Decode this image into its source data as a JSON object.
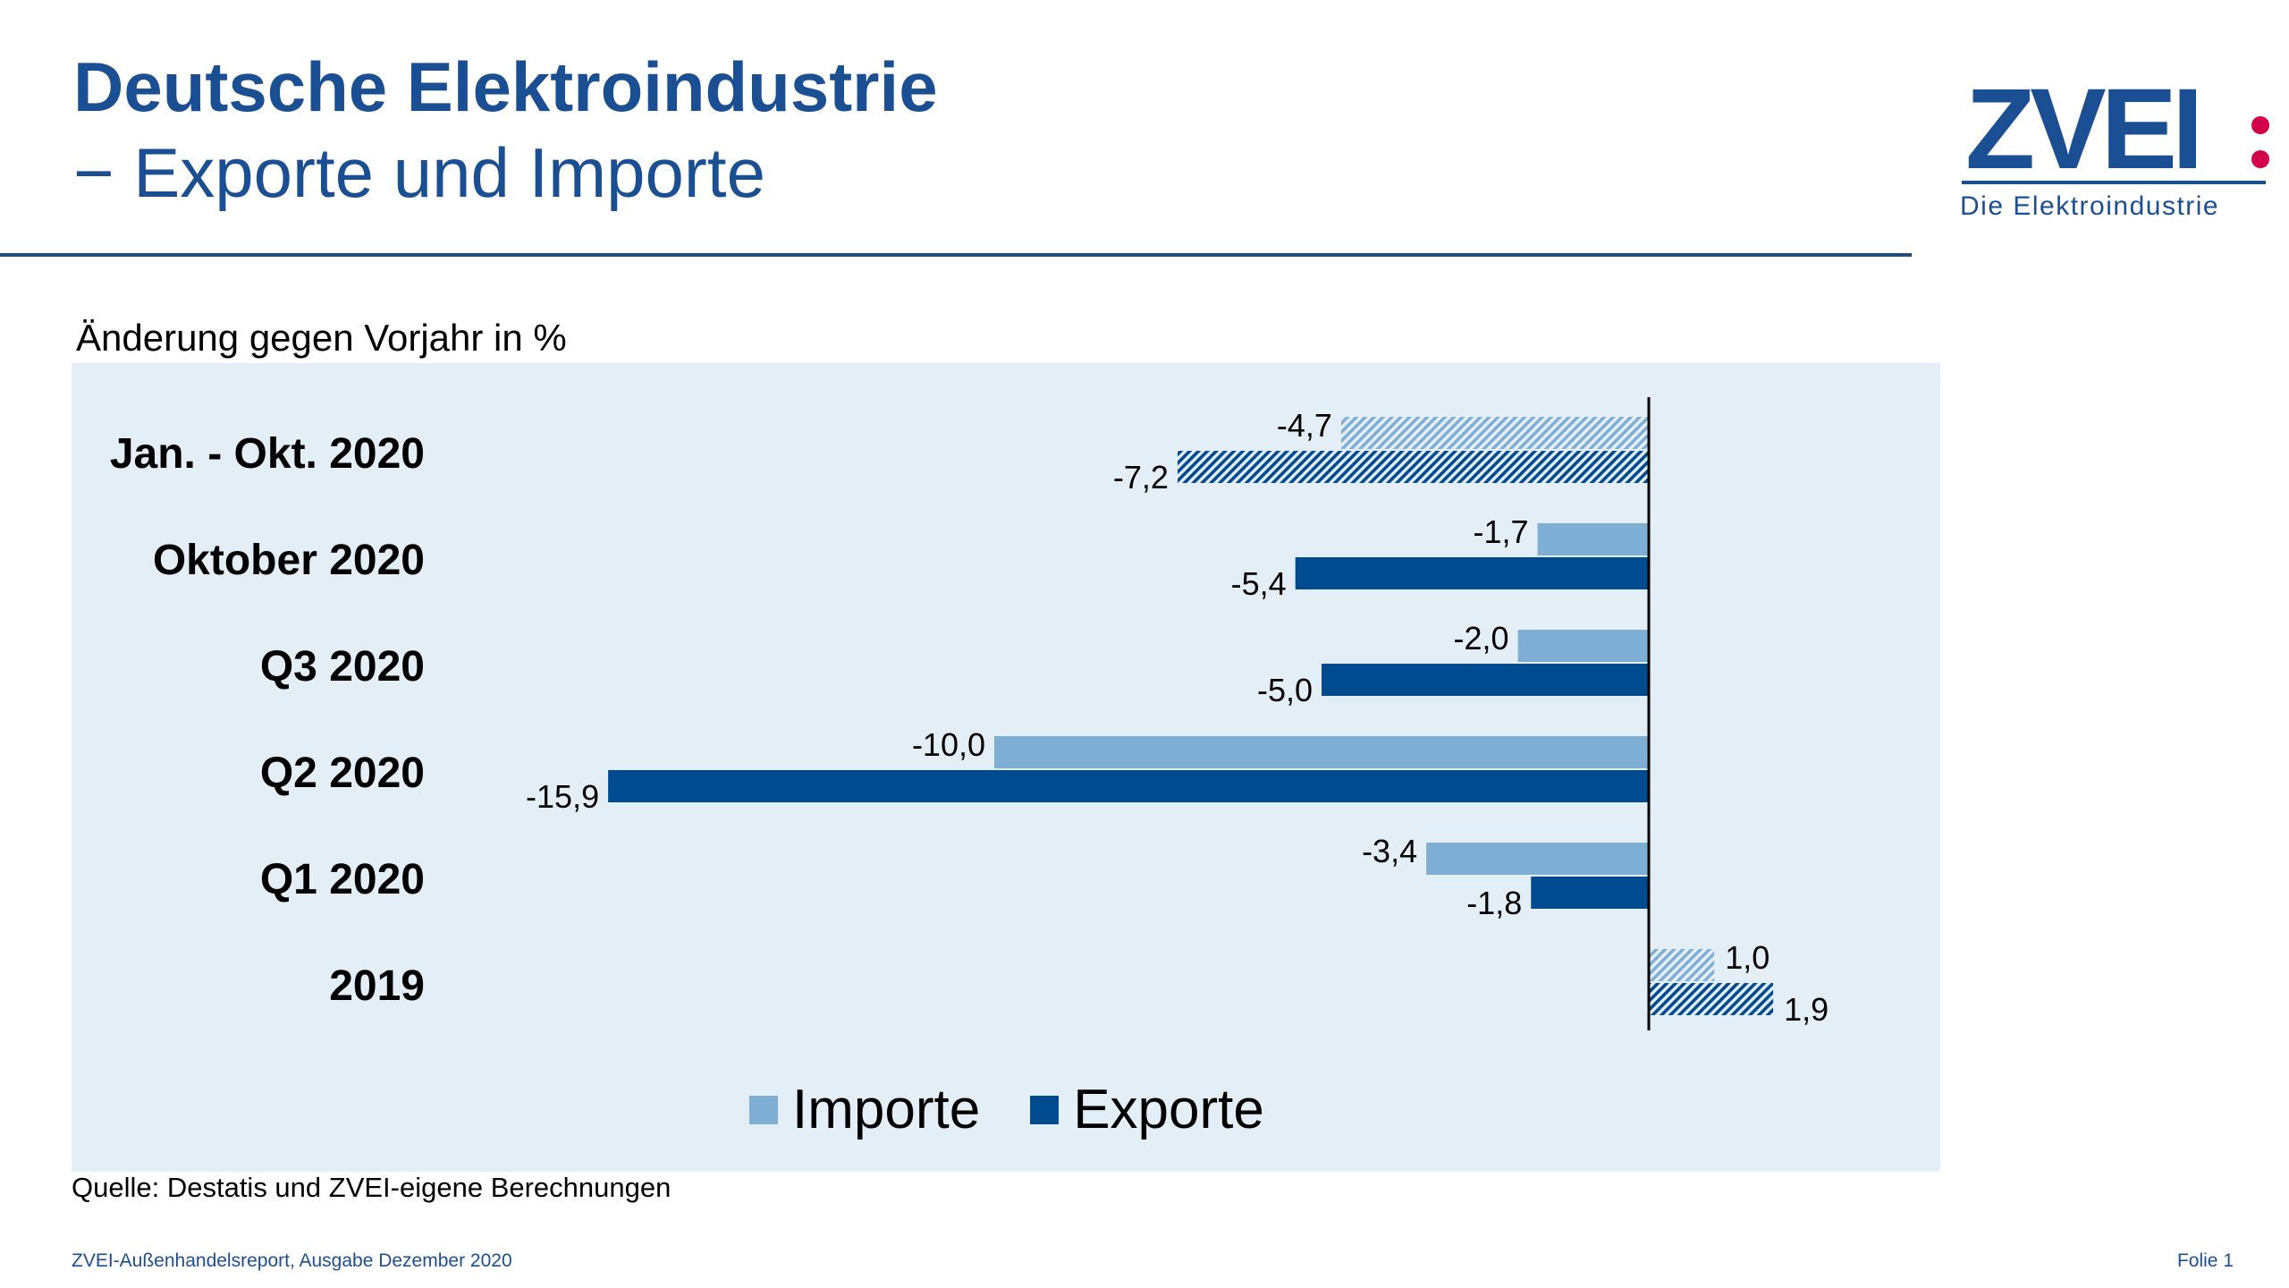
{
  "header": {
    "title_line1": "Deutsche Elektroindustrie",
    "title_line2": "− Exporte und Importe"
  },
  "logo": {
    "wordmark": "ZVEI",
    "tagline": "Die Elektroindustrie",
    "colors": {
      "primary": "#1b4f93",
      "dots": "#d2004b"
    }
  },
  "chart_data": {
    "type": "bar",
    "orientation": "horizontal",
    "subtitle": "Änderung gegen Vorjahr in %",
    "categories": [
      "Jan. - Okt. 2020",
      "Oktober 2020",
      "Q3 2020",
      "Q2 2020",
      "Q1 2020",
      "2019"
    ],
    "series": [
      {
        "name": "Importe",
        "color": "#7eaed4",
        "values": [
          -4.7,
          -1.7,
          -2.0,
          -10.0,
          -3.4,
          1.0
        ],
        "labels": [
          "-4,7",
          "-1,7",
          "-2,0",
          "-10,0",
          "-3,4",
          "1,0"
        ]
      },
      {
        "name": "Exporte",
        "color": "#004b8f",
        "values": [
          -7.2,
          -5.4,
          -5.0,
          -15.9,
          -1.8,
          1.9
        ],
        "labels": [
          "-7,2",
          "-5,4",
          "-5,0",
          "-15,9",
          "-1,8",
          "1,9"
        ]
      }
    ],
    "hatched_categories": [
      "Jan. - Okt. 2020",
      "2019"
    ],
    "grid": false,
    "legend_position": "bottom"
  },
  "source": "Quelle: Destatis und ZVEI-eigene Berechnungen",
  "footer": {
    "left": "ZVEI-Außenhandelsreport, Ausgabe Dezember 2020",
    "right": "Folie 1"
  }
}
